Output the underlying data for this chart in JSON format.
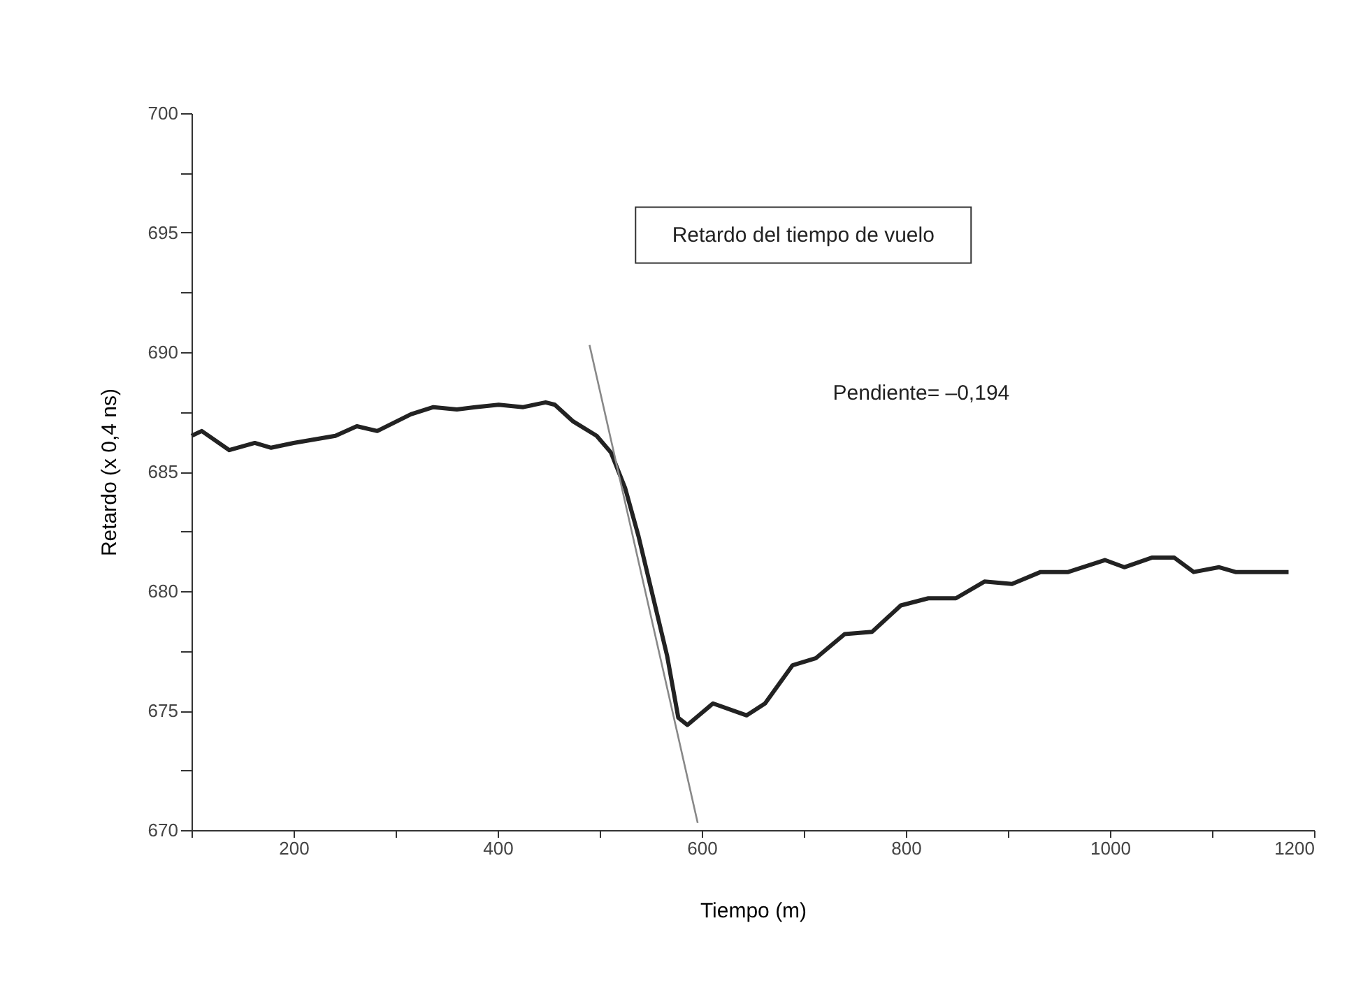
{
  "chart_data": {
    "type": "line",
    "xlabel": "Tiempo (m)",
    "ylabel": "Retardo (x 0,4 ns)",
    "xlim": [
      100,
      1200
    ],
    "ylim": [
      670,
      700
    ],
    "xticks": [
      {
        "value": 100,
        "label": null
      },
      200,
      {
        "value": 300,
        "label": null
      },
      400,
      {
        "value": 500,
        "label": null
      },
      600,
      {
        "value": 700,
        "label": null
      },
      800,
      {
        "value": 900,
        "label": null
      },
      1000,
      {
        "value": 1100,
        "label": null
      },
      1200
    ],
    "yticks": [
      670,
      {
        "value": 672.5,
        "label": null
      },
      675,
      {
        "value": 677.5,
        "label": null
      },
      680,
      {
        "value": 682.5,
        "label": null
      },
      685,
      {
        "value": 687.5,
        "label": null
      },
      690,
      {
        "value": 692.5,
        "label": null
      },
      695,
      {
        "value": 697.5,
        "label": null
      },
      700
    ],
    "grid": false,
    "marker": "none",
    "line_style": "solid",
    "annotations": [
      "Retardo del tiempo de vuelo",
      "Pendiente= –0,194"
    ],
    "series": [
      {
        "color": "#222222",
        "x": [
          100,
          110,
          137,
          162,
          178,
          200,
          241,
          262,
          282,
          315,
          337,
          360,
          378,
          401,
          425,
          447,
          456,
          474,
          497,
          511,
          525,
          538,
          552,
          566,
          577,
          586,
          611,
          644,
          662,
          689,
          712,
          740,
          767,
          795,
          822,
          849,
          877,
          904,
          932,
          959,
          995,
          1014,
          1041,
          1063,
          1082,
          1107,
          1123,
          1175
        ],
        "values": [
          686.5,
          686.7,
          685.9,
          686.2,
          686.0,
          686.2,
          686.5,
          686.9,
          686.7,
          687.4,
          687.7,
          687.6,
          687.7,
          687.8,
          687.7,
          687.9,
          687.8,
          687.1,
          686.5,
          685.8,
          684.3,
          682.3,
          679.8,
          677.3,
          674.7,
          674.4,
          675.3,
          674.8,
          675.3,
          676.9,
          677.2,
          678.2,
          678.3,
          679.4,
          679.7,
          679.7,
          680.4,
          680.3,
          680.8,
          680.8,
          681.3,
          681.0,
          681.4,
          681.4,
          680.8,
          681.0,
          680.8,
          680.8
        ]
      },
      {
        "color": "#888888",
        "x": [
          490,
          596
        ],
        "values": [
          690.3,
          670.3
        ]
      }
    ]
  }
}
